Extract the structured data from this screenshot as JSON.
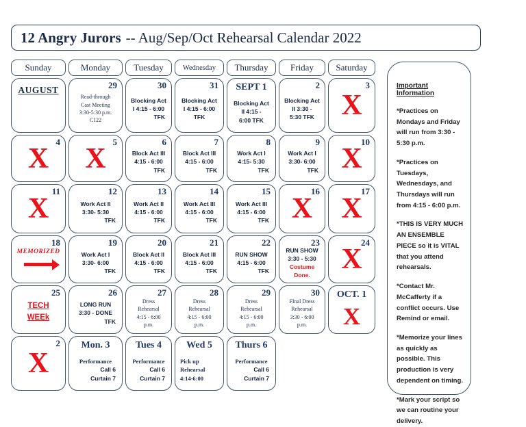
{
  "title": {
    "bold": "12 Angry Jurors",
    "rest": "-- Aug/Sep/Oct Rehearsal Calendar 2022"
  },
  "colors": {
    "navy": "#1f3864",
    "border": "#44546a",
    "red": "#e9141b",
    "event_text": "#15223b",
    "sidebar_text": "#242424"
  },
  "day_headers": [
    "Sunday",
    "Monday",
    "Tuesday",
    "Wednesday",
    "Thursday",
    "Friday",
    "Saturday"
  ],
  "weeks": [
    [
      {
        "type": "month",
        "label": "AUGUST"
      },
      {
        "type": "event",
        "day": "29",
        "font": "serif",
        "lines": [
          "Read-through",
          "Cast Meeting",
          "3:30-5:30 p.m.",
          "C122"
        ]
      },
      {
        "type": "event",
        "day": "30",
        "lines": [
          "Blocking Act",
          "I 4:15 - 6:00",
          {
            "text": "TFK",
            "align": "right"
          }
        ]
      },
      {
        "type": "event",
        "day": "31",
        "lines": [
          "Blocking Act",
          "I 4:15 - 6:00",
          "TFK"
        ]
      },
      {
        "type": "event",
        "day": "SEPT 1",
        "dayPos": "center",
        "lines": [
          "Blocking Act",
          "II 4:15 -",
          "6:00 TFK"
        ]
      },
      {
        "type": "event",
        "day": "2",
        "lines": [
          "Blocking Act",
          "II 3:30 -",
          "5:30 TFK"
        ]
      },
      {
        "type": "x",
        "day": "3"
      }
    ],
    [
      {
        "type": "x",
        "day": "4"
      },
      {
        "type": "x",
        "day": "5"
      },
      {
        "type": "event",
        "day": "6",
        "lines": [
          "Block Act III",
          "4:15 - 6:00",
          {
            "text": "TFK",
            "align": "right"
          }
        ]
      },
      {
        "type": "event",
        "day": "7",
        "lines": [
          "Block Act III",
          "4:15 - 6:00",
          {
            "text": "TFK",
            "align": "right"
          }
        ]
      },
      {
        "type": "event",
        "day": "8",
        "lines": [
          "Work Act I",
          "4:15- 5:30",
          {
            "text": "TFK",
            "align": "right"
          }
        ]
      },
      {
        "type": "event",
        "day": "9",
        "lines": [
          "Work Act I",
          "3:30- 6:00",
          {
            "text": "TFK",
            "align": "right"
          }
        ]
      },
      {
        "type": "x",
        "day": "10"
      }
    ],
    [
      {
        "type": "x",
        "day": "11"
      },
      {
        "type": "event",
        "day": "12",
        "lines": [
          "Work Act II",
          "3:30- 5:30",
          {
            "text": "TFK",
            "align": "right"
          }
        ]
      },
      {
        "type": "event",
        "day": "13",
        "lines": [
          "Work Act II",
          "4:15 - 6:00",
          {
            "text": "TFK",
            "align": "right"
          }
        ]
      },
      {
        "type": "event",
        "day": "14",
        "lines": [
          "Work Act III",
          "4:15 - 6:00",
          {
            "text": "TFK",
            "align": "right"
          }
        ]
      },
      {
        "type": "event",
        "day": "15",
        "lines": [
          "Work Act III",
          "4:15 - 6:00",
          {
            "text": "TFK",
            "align": "right"
          }
        ]
      },
      {
        "type": "x",
        "day": "16"
      },
      {
        "type": "x",
        "day": "17"
      }
    ],
    [
      {
        "type": "memorized",
        "day": "18",
        "label": "MEMORIZED"
      },
      {
        "type": "event",
        "day": "19",
        "lines": [
          "Work Act I",
          "3:30- 6:00",
          {
            "text": "TFK",
            "align": "right"
          }
        ]
      },
      {
        "type": "event",
        "day": "20",
        "lines": [
          "Block Act II",
          "4:15 - 6:00",
          {
            "text": "TFK",
            "align": "right"
          }
        ]
      },
      {
        "type": "event",
        "day": "21",
        "lines": [
          "Block Act III",
          "4:15 - 6:00",
          {
            "text": "TFK",
            "align": "right"
          }
        ]
      },
      {
        "type": "event",
        "day": "22",
        "lines": [
          "RUN SHOW",
          "4:15 - 6:00",
          {
            "text": "TFK",
            "align": "right"
          }
        ]
      },
      {
        "type": "event",
        "day": "23",
        "lines": [
          "RUN SHOW",
          "3:30 - 5:30",
          {
            "text": "Costume",
            "color": "red"
          },
          {
            "text": "Done.",
            "color": "red"
          }
        ]
      },
      {
        "type": "x",
        "day": "24"
      }
    ],
    [
      {
        "type": "tech",
        "day": "25",
        "lines": [
          "TECH",
          "WEEk"
        ]
      },
      {
        "type": "event",
        "day": "26",
        "lines": [
          "LONG RUN",
          "3:30 - DONE",
          {
            "text": "TFK",
            "align": "right"
          }
        ]
      },
      {
        "type": "event",
        "day": "27",
        "font": "serif",
        "lines": [
          "Dress",
          "Rehearsal",
          "4:15 - 6:00",
          "p.m."
        ]
      },
      {
        "type": "event",
        "day": "28",
        "font": "serif",
        "lines": [
          "Dress",
          "Rehearsal",
          "4:15 - 6:00",
          "p.m."
        ]
      },
      {
        "type": "event",
        "day": "29",
        "font": "serif",
        "lines": [
          "Dress",
          "Rehearsal",
          "4:15 - 6:00",
          "p.m."
        ]
      },
      {
        "type": "event",
        "day": "30",
        "font": "serif",
        "lines": [
          "FInal Dress",
          "Rehearsal",
          "3:30 - 6:00",
          "p.m."
        ]
      },
      {
        "type": "x",
        "day": "OCT. 1",
        "dayPos": "center"
      }
    ],
    [
      {
        "type": "x",
        "day": "2"
      },
      {
        "type": "event",
        "day": "Mon. 3",
        "dayPos": "center",
        "lines": [
          {
            "text": "Performance",
            "font": "serif-bold"
          },
          {
            "text": "Call 6",
            "align": "right"
          },
          {
            "text": "Curtain 7",
            "align": "right"
          }
        ]
      },
      {
        "type": "event",
        "day": "Tues 4",
        "dayPos": "center",
        "lines": [
          {
            "text": "Performance",
            "font": "serif-bold"
          },
          {
            "text": "Call 6",
            "align": "right"
          },
          {
            "text": "Curtain 7",
            "align": "right"
          }
        ]
      },
      {
        "type": "event",
        "day": "Wed 5",
        "dayPos": "center",
        "lines": [
          {
            "text": "Pick up",
            "font": "serif-bold",
            "align": "left"
          },
          {
            "text": "Rehearsal",
            "font": "serif-bold",
            "align": "left"
          },
          {
            "text": "4:14-6:00",
            "font": "serif-bold",
            "align": "left"
          }
        ]
      },
      {
        "type": "event",
        "day": "Thurs 6",
        "dayPos": "center",
        "lines": [
          {
            "text": "Performance",
            "font": "serif-bold"
          },
          {
            "text": "Call 6",
            "align": "right"
          },
          {
            "text": "Curtain 7",
            "align": "right"
          }
        ]
      },
      {
        "type": "empty"
      },
      {
        "type": "empty"
      }
    ]
  ],
  "sidebar": {
    "heading": "Important Information",
    "notes": [
      "*Practices on Mondays and Friday will run from 3:30 - 5:30 p.m.",
      "*Practices on Tuesdays, Wednesdays, and Thursdays will run from 4:15 - 6:00 p.m.",
      "*THIS IS VERY MUCH AN ENSEMBLE PIECE so it is VITAL that you attend rehearsals.",
      "*Contact Mr. McCafferty if a conflict occurs.  Use Remind or email.",
      "*Memorize your lines as quickly as possible. This production is very dependent on timing.",
      "*Mark your script so we can routine your delivery."
    ]
  }
}
